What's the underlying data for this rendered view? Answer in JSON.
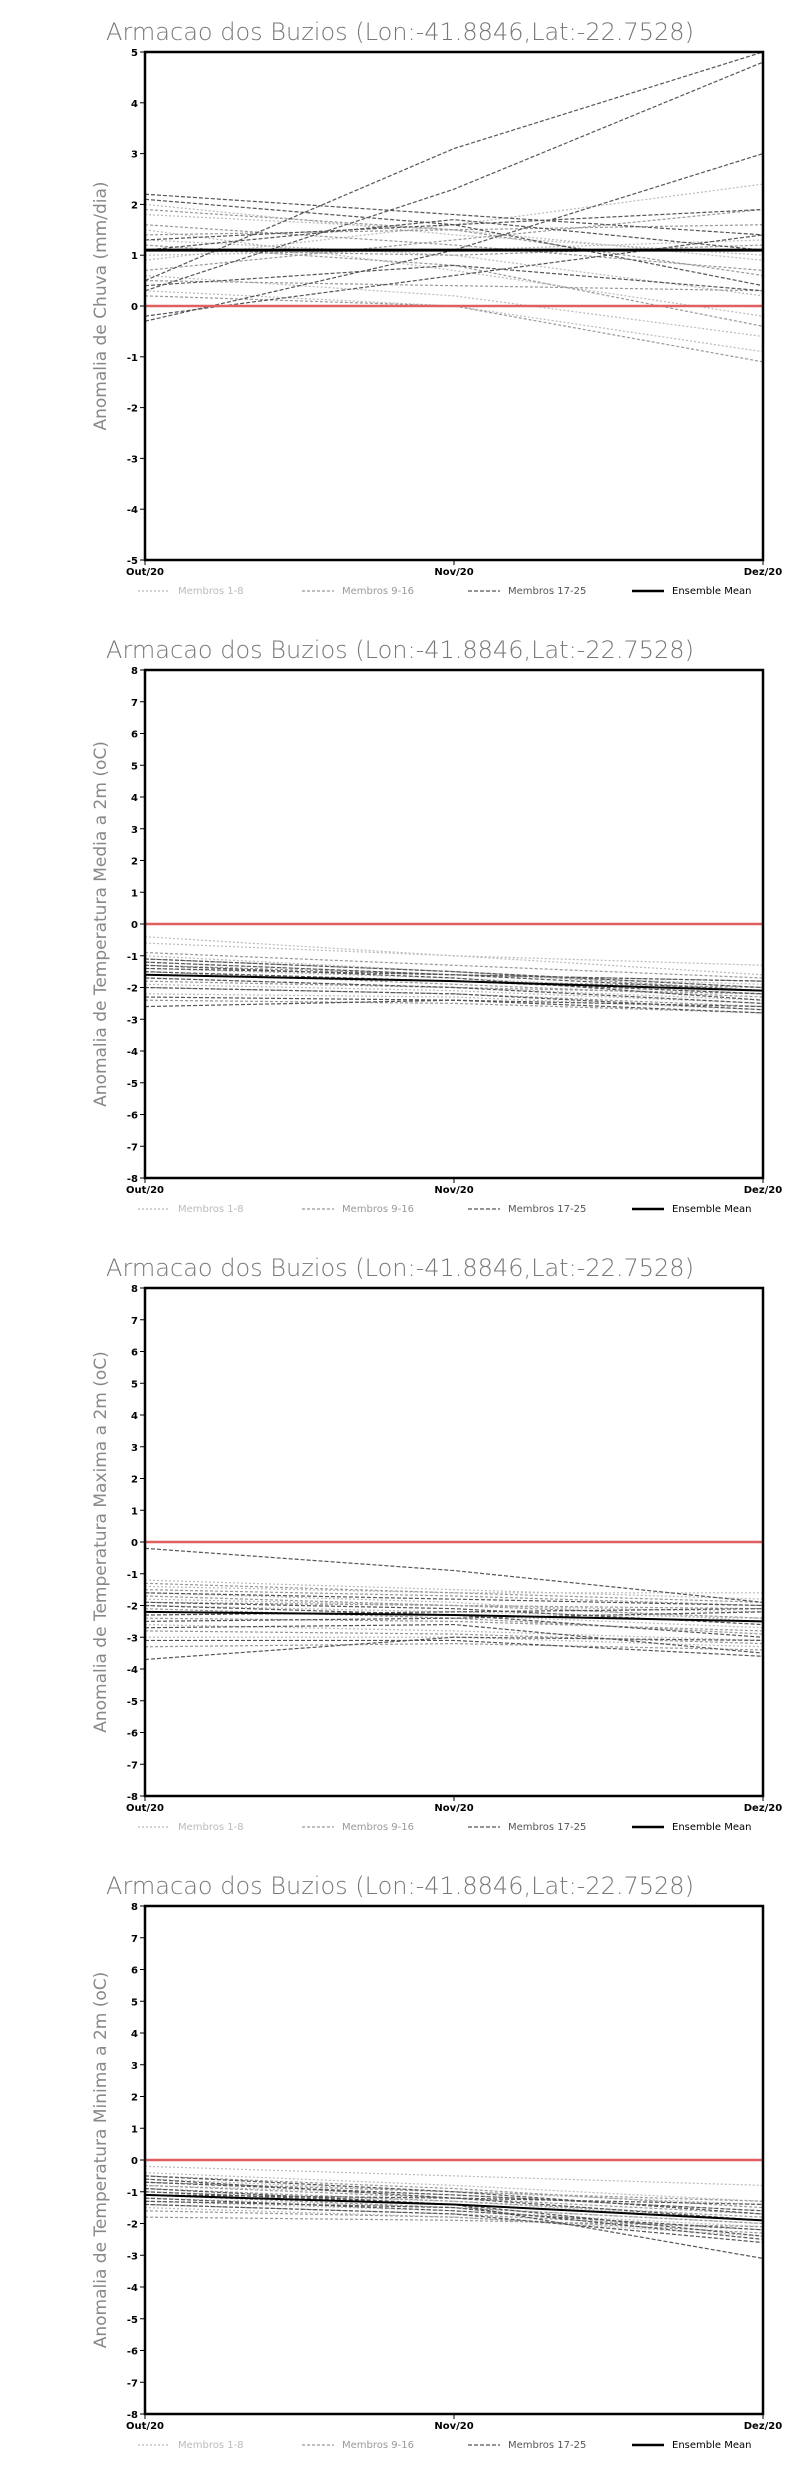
{
  "charts": [
    {
      "title": "Armacao dos Buzios (Lon:-41.8846,Lat:-22.7528)",
      "chart_type": "line",
      "ylabel": "Anomalia de Chuva (mm/dia)",
      "x_ticks": [
        "Out/20",
        "Nov/20",
        "Dez/20"
      ],
      "ylim": [
        -5,
        5
      ],
      "y_ticks": [
        -5,
        -4,
        -3,
        -2,
        -1,
        0,
        1,
        2,
        3,
        4,
        5
      ],
      "legend": [
        "Membros 1-8",
        "Membros 9-16",
        "Membros 17-25",
        "Ensemble Mean"
      ],
      "ensemble_mean": [
        1.1,
        1.1,
        1.1
      ],
      "reference_line": 0
    },
    {
      "title": "Armacao dos Buzios (Lon:-41.8846,Lat:-22.7528)",
      "chart_type": "line",
      "ylabel": "Anomalia de Temperatura Media a 2m (oC)",
      "x_ticks": [
        "Out/20",
        "Nov/20",
        "Dez/20"
      ],
      "ylim": [
        -8,
        8
      ],
      "y_ticks": [
        -8,
        -7,
        -6,
        -5,
        -4,
        -3,
        -2,
        -1,
        0,
        1,
        2,
        3,
        4,
        5,
        6,
        7,
        8
      ],
      "legend": [
        "Membros 1-8",
        "Membros 9-16",
        "Membros 17-25",
        "Ensemble Mean"
      ],
      "ensemble_mean": [
        -1.6,
        -1.8,
        -2.1
      ],
      "reference_line": 0
    },
    {
      "title": "Armacao dos Buzios (Lon:-41.8846,Lat:-22.7528)",
      "chart_type": "line",
      "ylabel": "Anomalia de Temperatura Maxima a 2m (oC)",
      "x_ticks": [
        "Out/20",
        "Nov/20",
        "Dez/20"
      ],
      "ylim": [
        -8,
        8
      ],
      "y_ticks": [
        -8,
        -7,
        -6,
        -5,
        -4,
        -3,
        -2,
        -1,
        0,
        1,
        2,
        3,
        4,
        5,
        6,
        7,
        8
      ],
      "legend": [
        "Membros 1-8",
        "Membros 9-16",
        "Membros 17-25",
        "Ensemble Mean"
      ],
      "ensemble_mean": [
        -2.2,
        -2.3,
        -2.5
      ],
      "reference_line": 0
    },
    {
      "title": "Armacao dos Buzios (Lon:-41.8846,Lat:-22.7528)",
      "chart_type": "line",
      "ylabel": "Anomalia de Temperatura Minima a 2m (oC)",
      "x_ticks": [
        "Out/20",
        "Nov/20",
        "Dez/20"
      ],
      "ylim": [
        -8,
        8
      ],
      "y_ticks": [
        -8,
        -7,
        -6,
        -5,
        -4,
        -3,
        -2,
        -1,
        0,
        1,
        2,
        3,
        4,
        5,
        6,
        7,
        8
      ],
      "legend": [
        "Membros 1-8",
        "Membros 9-16",
        "Membros 17-25",
        "Ensemble Mean"
      ],
      "ensemble_mean": [
        -1.1,
        -1.4,
        -1.9
      ],
      "reference_line": 0
    }
  ],
  "chart_data": [
    {
      "type": "line",
      "title": "Armacao dos Buzios (Lon:-41.8846,Lat:-22.7528)",
      "ylabel": "Anomalia de Chuva (mm/dia)",
      "x": [
        "Out/20",
        "Nov/20",
        "Dez/20"
      ],
      "ylim": [
        -5,
        5
      ],
      "grid": false,
      "legend_position": "bottom",
      "series": [
        {
          "name": "Membros 1-8",
          "color": "#bbbbbb",
          "members": [
            [
              1.8,
              1.5,
              0.9
            ],
            [
              0.6,
              0.2,
              -0.6
            ],
            [
              1.3,
              1.0,
              0.2
            ],
            [
              2.0,
              1.4,
              1.0
            ],
            [
              0.9,
              1.6,
              2.4
            ],
            [
              0.3,
              0.0,
              -0.9
            ],
            [
              1.5,
              0.7,
              -0.2
            ],
            [
              1.0,
              1.1,
              1.3
            ]
          ]
        },
        {
          "name": "Membros 9-16",
          "color": "#999999",
          "members": [
            [
              0.5,
              0.4,
              0.3
            ],
            [
              1.6,
              1.2,
              0.7
            ],
            [
              1.2,
              0.8,
              -0.4
            ],
            [
              0.7,
              1.3,
              1.9
            ],
            [
              1.4,
              1.5,
              1.6
            ],
            [
              0.2,
              0.0,
              -1.1
            ],
            [
              1.9,
              1.5,
              0.6
            ],
            [
              1.1,
              1.0,
              1.2
            ]
          ]
        },
        {
          "name": "Membros 17-25",
          "color": "#555555",
          "members": [
            [
              0.5,
              3.1,
              5.0
            ],
            [
              0.3,
              2.3,
              4.8
            ],
            [
              2.2,
              1.8,
              1.4
            ],
            [
              -0.3,
              1.1,
              3.0
            ],
            [
              1.1,
              1.7,
              1.1
            ],
            [
              0.4,
              0.8,
              0.3
            ],
            [
              1.3,
              1.6,
              1.9
            ],
            [
              2.1,
              1.6,
              0.4
            ],
            [
              -0.2,
              0.6,
              1.4
            ]
          ]
        },
        {
          "name": "Ensemble Mean",
          "color": "#000000",
          "values": [
            1.1,
            1.1,
            1.1
          ]
        }
      ],
      "reference_line": {
        "y": 0,
        "color": "#e06060"
      }
    },
    {
      "type": "line",
      "title": "Armacao dos Buzios (Lon:-41.8846,Lat:-22.7528)",
      "ylabel": "Anomalia de Temperatura Media a 2m (oC)",
      "x": [
        "Out/20",
        "Nov/20",
        "Dez/20"
      ],
      "ylim": [
        -8,
        8
      ],
      "grid": false,
      "legend_position": "bottom",
      "series": [
        {
          "name": "Membros 1-8",
          "color": "#bbbbbb",
          "members": [
            [
              -0.6,
              -1.0,
              -1.3
            ],
            [
              -1.2,
              -1.6,
              -1.9
            ],
            [
              -1.9,
              -2.1,
              -2.5
            ],
            [
              -1.0,
              -1.5,
              -2.0
            ],
            [
              -2.2,
              -2.3,
              -2.7
            ],
            [
              -1.4,
              -1.7,
              -2.2
            ],
            [
              -0.4,
              -1.0,
              -1.6
            ],
            [
              -1.7,
              -2.0,
              -2.4
            ]
          ]
        },
        {
          "name": "Membros 9-16",
          "color": "#999999",
          "members": [
            [
              -1.3,
              -1.6,
              -1.8
            ],
            [
              -2.0,
              -2.2,
              -2.6
            ],
            [
              -1.1,
              -1.5,
              -2.1
            ],
            [
              -1.6,
              -1.8,
              -2.0
            ],
            [
              -2.4,
              -2.5,
              -2.8
            ],
            [
              -0.9,
              -1.3,
              -1.7
            ],
            [
              -1.5,
              -1.9,
              -2.3
            ],
            [
              -1.8,
              -2.0,
              -2.2
            ]
          ]
        },
        {
          "name": "Membros 17-25",
          "color": "#555555",
          "members": [
            [
              -1.1,
              -1.5,
              -2.0
            ],
            [
              -1.5,
              -1.8,
              -2.2
            ],
            [
              -2.3,
              -2.4,
              -2.8
            ],
            [
              -1.3,
              -1.7,
              -2.4
            ],
            [
              -1.7,
              -2.0,
              -2.5
            ],
            [
              -2.0,
              -2.2,
              -2.7
            ],
            [
              -1.2,
              -1.6,
              -2.1
            ],
            [
              -2.6,
              -2.4,
              -2.6
            ],
            [
              -1.4,
              -1.6,
              -1.8
            ]
          ]
        },
        {
          "name": "Ensemble Mean",
          "color": "#000000",
          "values": [
            -1.6,
            -1.8,
            -2.1
          ]
        }
      ],
      "reference_line": {
        "y": 0,
        "color": "#e06060"
      }
    },
    {
      "type": "line",
      "title": "Armacao dos Buzios (Lon:-41.8846,Lat:-22.7528)",
      "ylabel": "Anomalia de Temperatura Maxima a 2m (oC)",
      "x": [
        "Out/20",
        "Nov/20",
        "Dez/20"
      ],
      "ylim": [
        -8,
        8
      ],
      "grid": false,
      "legend_position": "bottom",
      "series": [
        {
          "name": "Membros 1-8",
          "color": "#bbbbbb",
          "members": [
            [
              -1.2,
              -1.5,
              -1.8
            ],
            [
              -2.0,
              -2.2,
              -2.4
            ],
            [
              -1.4,
              -1.6,
              -1.6
            ],
            [
              -2.6,
              -2.8,
              -3.1
            ],
            [
              -1.8,
              -2.0,
              -2.2
            ],
            [
              -3.0,
              -3.0,
              -3.3
            ],
            [
              -1.6,
              -1.9,
              -2.5
            ],
            [
              -2.2,
              -2.3,
              -2.7
            ]
          ]
        },
        {
          "name": "Membros 9-16",
          "color": "#999999",
          "members": [
            [
              -1.5,
              -1.7,
              -2.0
            ],
            [
              -2.4,
              -2.5,
              -2.8
            ],
            [
              -1.9,
              -2.0,
              -2.1
            ],
            [
              -2.8,
              -2.9,
              -3.2
            ],
            [
              -1.3,
              -1.6,
              -1.9
            ],
            [
              -3.3,
              -3.2,
              -3.4
            ],
            [
              -2.1,
              -2.4,
              -2.9
            ],
            [
              -1.7,
              -2.0,
              -2.4
            ]
          ]
        },
        {
          "name": "Membros 17-25",
          "color": "#555555",
          "members": [
            [
              -0.2,
              -0.9,
              -1.9
            ],
            [
              -3.7,
              -3.0,
              -3.1
            ],
            [
              -2.3,
              -2.2,
              -2.1
            ],
            [
              -2.7,
              -2.6,
              -3.5
            ],
            [
              -1.9,
              -2.1,
              -2.6
            ],
            [
              -3.1,
              -3.1,
              -3.6
            ],
            [
              -2.5,
              -2.4,
              -2.2
            ],
            [
              -2.0,
              -2.3,
              -3.0
            ],
            [
              -1.6,
              -1.8,
              -2.0
            ]
          ]
        },
        {
          "name": "Ensemble Mean",
          "color": "#000000",
          "values": [
            -2.2,
            -2.3,
            -2.5
          ]
        }
      ],
      "reference_line": {
        "y": 0,
        "color": "#e06060"
      }
    },
    {
      "type": "line",
      "title": "Armacao dos Buzios (Lon:-41.8846,Lat:-22.7528)",
      "ylabel": "Anomalia de Temperatura Minima a 2m (oC)",
      "x": [
        "Out/20",
        "Nov/20",
        "Dez/20"
      ],
      "ylim": [
        -8,
        8
      ],
      "grid": false,
      "legend_position": "bottom",
      "series": [
        {
          "name": "Membros 1-8",
          "color": "#bbbbbb",
          "members": [
            [
              -0.2,
              -0.5,
              -0.8
            ],
            [
              -0.8,
              -1.1,
              -1.6
            ],
            [
              -1.3,
              -1.6,
              -2.1
            ],
            [
              -0.6,
              -1.0,
              -1.4
            ],
            [
              -1.0,
              -1.3,
              -1.9
            ],
            [
              -1.5,
              -1.8,
              -2.4
            ],
            [
              -0.4,
              -0.8,
              -1.3
            ],
            [
              -1.2,
              -1.5,
              -2.0
            ]
          ]
        },
        {
          "name": "Membros 9-16",
          "color": "#999999",
          "members": [
            [
              -0.7,
              -1.0,
              -1.3
            ],
            [
              -1.4,
              -1.7,
              -2.2
            ],
            [
              -0.9,
              -1.3,
              -1.8
            ],
            [
              -1.6,
              -1.8,
              -2.3
            ],
            [
              -0.5,
              -0.9,
              -1.5
            ],
            [
              -1.1,
              -1.5,
              -2.0
            ],
            [
              -1.8,
              -1.9,
              -2.1
            ],
            [
              -0.8,
              -1.2,
              -1.7
            ]
          ]
        },
        {
          "name": "Membros 17-25",
          "color": "#555555",
          "members": [
            [
              -0.5,
              -1.0,
              -1.7
            ],
            [
              -1.0,
              -1.4,
              -2.4
            ],
            [
              -1.4,
              -1.7,
              -2.6
            ],
            [
              -0.6,
              -1.2,
              -1.9
            ],
            [
              -1.2,
              -1.6,
              -2.2
            ],
            [
              -0.9,
              -1.4,
              -3.1
            ],
            [
              -1.3,
              -1.5,
              -2.5
            ],
            [
              -0.7,
              -1.1,
              -1.6
            ],
            [
              -1.1,
              -1.2,
              -1.4
            ]
          ]
        },
        {
          "name": "Ensemble Mean",
          "color": "#000000",
          "values": [
            -1.1,
            -1.4,
            -1.9
          ]
        }
      ],
      "reference_line": {
        "y": 0,
        "color": "#e06060"
      }
    }
  ]
}
